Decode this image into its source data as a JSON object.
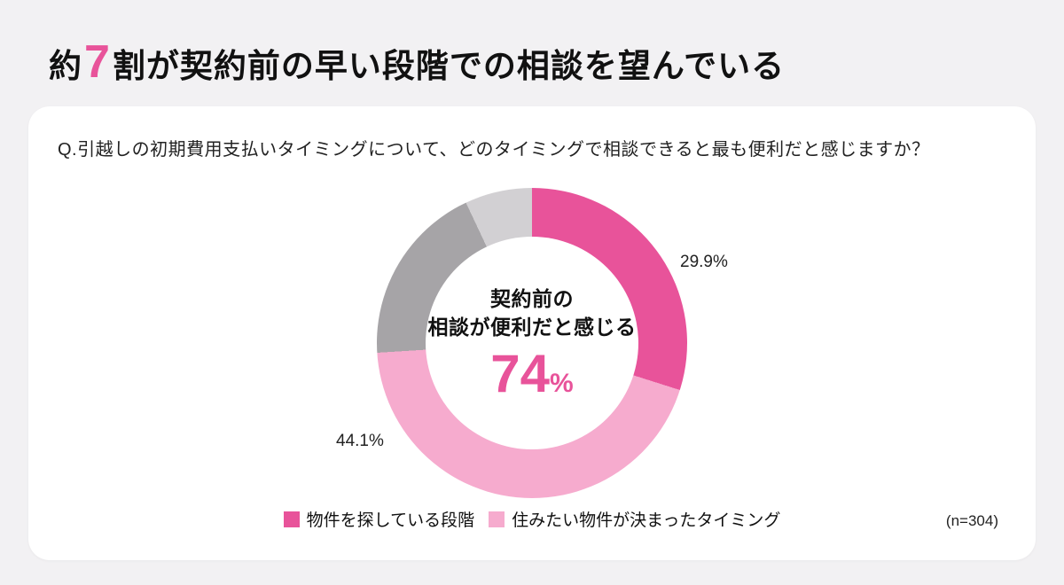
{
  "colors": {
    "accent": "#e8539a",
    "light_pink": "#f6abce",
    "gray": "#a6a4a7",
    "light_gray": "#d2d0d3",
    "background": "#f2f1f3",
    "card": "#ffffff"
  },
  "title": {
    "prefix": "約",
    "highlight": "7",
    "suffix": "割が契約前の早い段階での相談を望んでいる"
  },
  "card": {
    "question": "Q.引越しの初期費用支払いタイミングについて、どのタイミングで相談できると最も便利だと感じますか？",
    "sample_size": "(n=304)"
  },
  "chart_data": {
    "type": "pie",
    "subtype": "donut",
    "title": "約7割が契約前の早い段階での相談を望んでいる",
    "legend_position": "bottom",
    "start_angle_deg": 0,
    "direction": "clockwise",
    "center_text": {
      "line1": "契約前の",
      "line2": "相談が便利だと感じる",
      "value": "74",
      "unit": "%"
    },
    "segments": [
      {
        "label": "物件を探している段階",
        "value": 29.9,
        "pct_label": "29.9%",
        "color": "#e8539a",
        "in_legend": true
      },
      {
        "label": "住みたい物件が決まったタイミング",
        "value": 44.1,
        "pct_label": "44.1%",
        "color": "#f6abce",
        "in_legend": true
      },
      {
        "label": "",
        "value": 19.0,
        "pct_label": "",
        "color": "#a6a4a7",
        "in_legend": false
      },
      {
        "label": "",
        "value": 7.0,
        "pct_label": "",
        "color": "#d2d0d3",
        "in_legend": false
      }
    ]
  }
}
